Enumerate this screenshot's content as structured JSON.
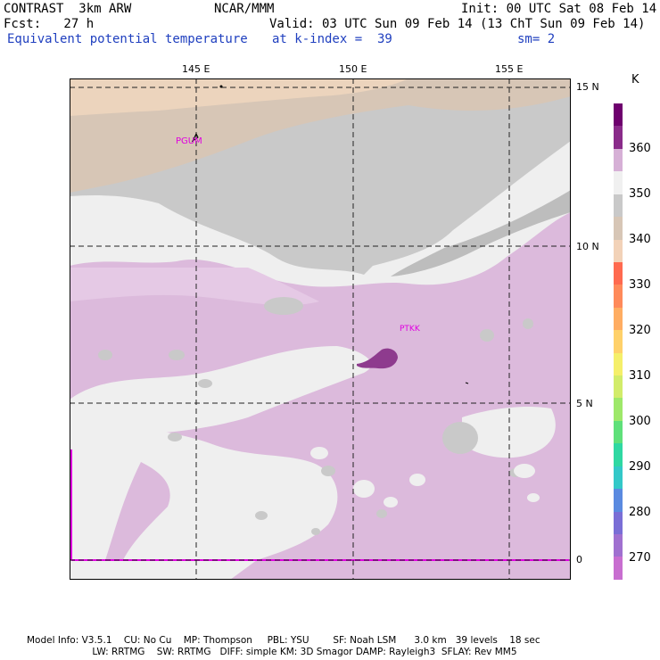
{
  "header": {
    "line1_left": "CONTRAST  3km ARW",
    "line1_mid": "NCAR/MMM",
    "line1_right": "Init: 00 UTC Sat 08 Feb 14",
    "line2_left": "Fcst:   27 h",
    "line2_right": "Valid: 03 UTC Sun 09 Feb 14 (13 ChT Sun 09 Feb 14)",
    "line3_left": "Equivalent potential temperature",
    "line3_mid": "at k-index =  39",
    "line3_right": "sm= 2"
  },
  "map": {
    "lon_ticks": [
      "145 E",
      "150 E",
      "155 E"
    ],
    "lat_ticks": [
      "15 N",
      "10 N",
      "5 N",
      "0"
    ],
    "stations": [
      "PGUM",
      "PTKK"
    ]
  },
  "colorbar": {
    "unit": "K",
    "labels": [
      "360",
      "350",
      "340",
      "330",
      "320",
      "310",
      "300",
      "290",
      "280",
      "270"
    ],
    "colors": [
      "#6e006e",
      "#8a2b8a",
      "#d6b0d6",
      "#f0f0f0",
      "#c9c9c9",
      "#d7c6b6",
      "#f2d2b8",
      "#ff6a4f",
      "#ff8a5a",
      "#ffad62",
      "#ffd16a",
      "#f5ef6a",
      "#d2ec6a",
      "#9ee86a",
      "#5fe07a",
      "#2fd8a2",
      "#33c8c8",
      "#5a8ae0",
      "#7a6ed6",
      "#a070d0",
      "#c86ed0"
    ]
  },
  "footer": {
    "line1": "Model Info: V3.5.1    CU: No Cu    MP: Thompson     PBL: YSU        SF: Noah LSM      3.0 km   39 levels    18 sec",
    "line2": "                      LW: RRTMG    SW: RRTMG   DIFF: simple KM: 3D Smagor DAMP: Rayleigh3  SFLAY: Rev MM5"
  }
}
